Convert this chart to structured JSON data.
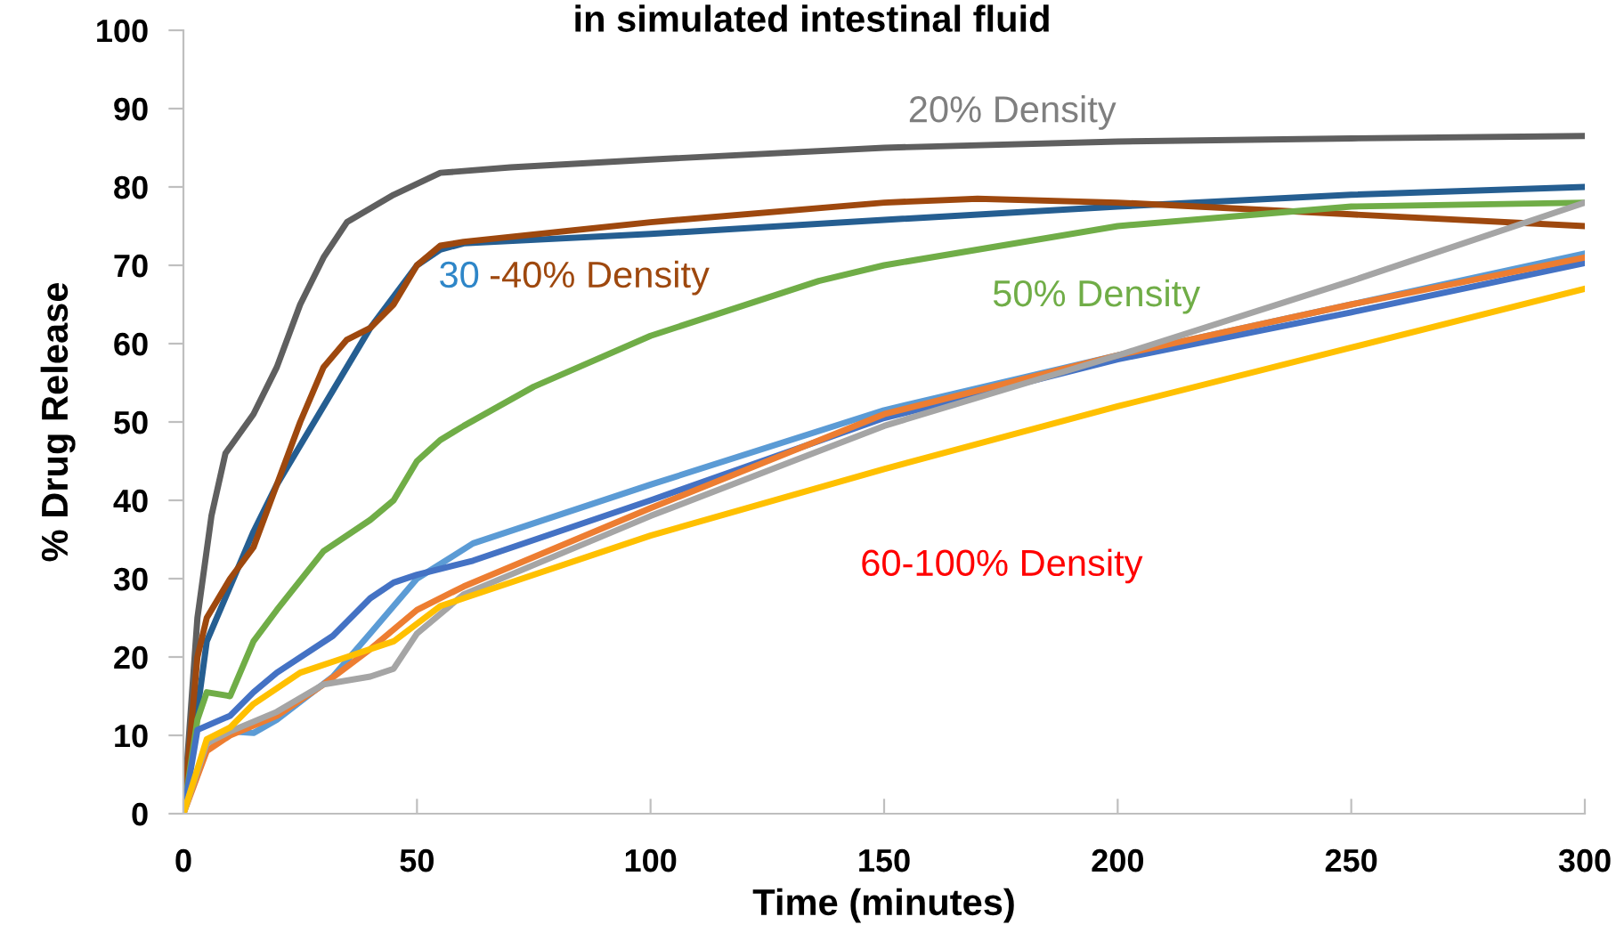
{
  "chart_data": {
    "type": "line",
    "title": "in simulated intestinal fluid",
    "xlabel": "Time (minutes)",
    "ylabel": "% Drug Release",
    "xlim": [
      0,
      300
    ],
    "xticks": [
      0,
      50,
      100,
      150,
      200,
      250,
      300
    ],
    "ylim": [
      0,
      100
    ],
    "yticks": [
      0,
      10,
      20,
      30,
      40,
      50,
      60,
      70,
      80,
      90,
      100
    ],
    "grid": false,
    "marker": "none",
    "line_style": "solid",
    "series": [
      {
        "name": "20% Density",
        "color": "#5f5f5f",
        "x": [
          0,
          3,
          6,
          9,
          15,
          20,
          25,
          30,
          35,
          45,
          55,
          70,
          100,
          150,
          200,
          250,
          300
        ],
        "values": [
          0,
          25,
          38,
          46,
          51,
          57,
          65,
          71,
          75.5,
          79,
          81.8,
          82.5,
          83.5,
          85,
          85.8,
          86.2,
          86.5
        ]
      },
      {
        "color": "#255e91",
        "x": [
          0,
          5,
          10,
          15,
          20,
          30,
          40,
          50,
          55,
          60,
          100,
          150,
          200,
          250,
          300
        ],
        "values": [
          0,
          22,
          29,
          36,
          42,
          52,
          62,
          70,
          72,
          72.8,
          74,
          75.8,
          77.5,
          79,
          80
        ]
      },
      {
        "color": "#9e480e",
        "x": [
          0,
          3,
          5,
          10,
          15,
          20,
          25,
          30,
          35,
          40,
          45,
          50,
          55,
          60,
          100,
          150,
          170,
          200,
          250,
          300
        ],
        "values": [
          0,
          20,
          25,
          30,
          34,
          42,
          50,
          57,
          60.5,
          62,
          65,
          70,
          72.5,
          73,
          75.5,
          78,
          78.5,
          78,
          76.5,
          75
        ]
      },
      {
        "name": "50% Density",
        "color": "#70ad47",
        "x": [
          0,
          3,
          5,
          10,
          15,
          20,
          30,
          40,
          45,
          50,
          55,
          60,
          75,
          100,
          136,
          150,
          200,
          250,
          300
        ],
        "values": [
          0,
          12,
          15.5,
          15,
          22,
          26,
          33.5,
          37.5,
          40,
          45,
          47.7,
          49.5,
          54.5,
          61,
          68,
          70,
          75,
          77.5,
          78
        ]
      },
      {
        "color": "#5b9bd5",
        "x": [
          0,
          5,
          10,
          15,
          20,
          32,
          40,
          50,
          62,
          100,
          150,
          200,
          250,
          300
        ],
        "values": [
          0,
          9,
          10.5,
          10.3,
          12,
          17.5,
          23,
          30,
          34.5,
          42,
          51.5,
          58.5,
          65,
          71.5
        ]
      },
      {
        "color": "#4472c4",
        "x": [
          0,
          3,
          10,
          15,
          20,
          32,
          40,
          45,
          50,
          62,
          100,
          150,
          200,
          250,
          300
        ],
        "values": [
          0,
          10.7,
          12.5,
          15.5,
          18,
          22.7,
          27.5,
          29.5,
          30.5,
          32.3,
          40,
          50.5,
          58,
          64,
          70.3
        ]
      },
      {
        "color": "#ed7d31",
        "x": [
          0,
          5,
          10,
          20,
          30,
          40,
          50,
          60,
          100,
          150,
          200,
          250,
          300
        ],
        "values": [
          0,
          8,
          10,
          12.5,
          16.5,
          21,
          26,
          29,
          39,
          51,
          58.5,
          65,
          71
        ]
      },
      {
        "color": "#a5a5a5",
        "x": [
          0,
          5,
          10,
          20,
          30,
          40,
          45,
          50,
          60,
          100,
          150,
          200,
          250,
          300
        ],
        "values": [
          0,
          9,
          10.5,
          13,
          16.5,
          17.5,
          18.5,
          23,
          28,
          38,
          49.5,
          58.5,
          68,
          78
        ]
      },
      {
        "color": "#ffc000",
        "x": [
          0,
          5,
          10,
          15,
          25,
          35,
          45,
          55,
          60,
          100,
          150,
          200,
          250,
          300
        ],
        "values": [
          0,
          9.5,
          11,
          14,
          18,
          20,
          22,
          26.5,
          27.5,
          35.5,
          44,
          52,
          59.5,
          67
        ]
      }
    ],
    "annotations": [
      "30",
      "-40% Density",
      "60-100% Density"
    ]
  }
}
